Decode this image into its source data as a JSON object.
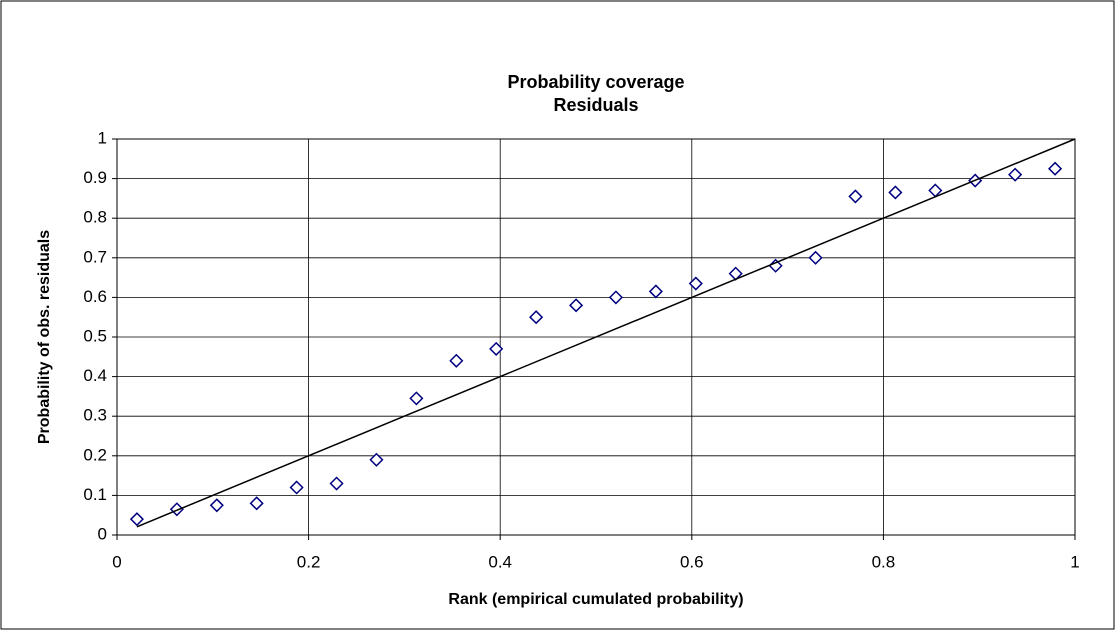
{
  "chart_data": {
    "type": "scatter",
    "title": "Probability coverage",
    "subtitle": "Residuals",
    "x_label": "Rank (empirical cumulated probability)",
    "y_label": "Probability of obs. residuals",
    "series": [
      {
        "color": "#000080",
        "marker": "diamond",
        "x": [
          0.0208,
          0.0625,
          0.1042,
          0.1458,
          0.1875,
          0.2292,
          0.2708,
          0.3125,
          0.3542,
          0.3958,
          0.4375,
          0.4792,
          0.5208,
          0.5625,
          0.6042,
          0.6458,
          0.6875,
          0.7292,
          0.7708,
          0.8125,
          0.8542,
          0.8958,
          0.9375,
          0.9792
        ],
        "values": [
          0.04,
          0.065,
          0.075,
          0.08,
          0.12,
          0.13,
          0.19,
          0.345,
          0.44,
          0.47,
          0.55,
          0.58,
          0.6,
          0.615,
          0.635,
          0.66,
          0.68,
          0.7,
          0.855,
          0.865,
          0.87,
          0.895,
          0.91,
          0.925
        ]
      },
      {
        "color": "#000000",
        "marker": "line",
        "x": [
          0.0208,
          1
        ],
        "values": [
          0.0208,
          1
        ]
      }
    ],
    "xlim": [
      0,
      1
    ],
    "ylim": [
      0,
      1
    ],
    "xticks": [
      0,
      0.2,
      0.4,
      0.6,
      0.8,
      1
    ],
    "yticks": [
      0,
      0.1,
      0.2,
      0.3,
      0.4,
      0.5,
      0.6,
      0.7,
      0.8,
      0.9,
      1
    ],
    "grid": true
  }
}
